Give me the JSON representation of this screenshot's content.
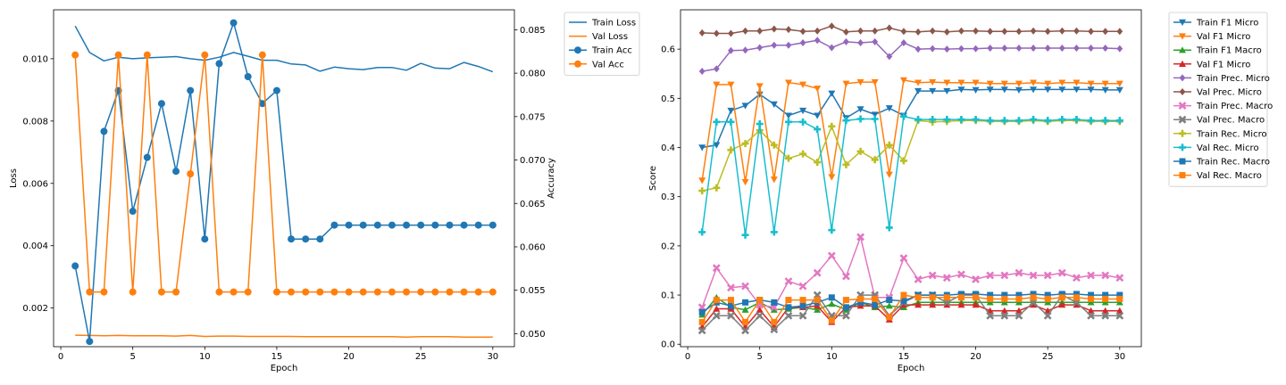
{
  "chart_data": [
    {
      "type": "line",
      "xlabel": "Epoch",
      "ylabel": "Loss",
      "y2label": "Accuracy",
      "xlim": [
        -0.5,
        31.5
      ],
      "ylim": [
        0.00076,
        0.01157
      ],
      "y2lim": [
        0.0485,
        0.0873
      ],
      "xticks": [
        0,
        5,
        10,
        15,
        20,
        25,
        30
      ],
      "yticks": [
        0.002,
        0.004,
        0.006,
        0.008,
        0.01
      ],
      "y2ticks": [
        0.05,
        0.055,
        0.06,
        0.065,
        0.07,
        0.075,
        0.08,
        0.085
      ],
      "legend_position": "outside-upper-right",
      "x": [
        1,
        2,
        3,
        4,
        5,
        6,
        7,
        8,
        9,
        10,
        11,
        12,
        13,
        14,
        15,
        16,
        17,
        18,
        19,
        20,
        21,
        22,
        23,
        24,
        25,
        26,
        27,
        28,
        29,
        30
      ],
      "series": [
        {
          "name": "Train Loss",
          "axis": "left",
          "color": "#1f77b4",
          "marker": "none",
          "values": [
            0.01105,
            0.0102,
            0.00993,
            0.01005,
            0.01,
            0.01003,
            0.01005,
            0.01007,
            0.01,
            0.00995,
            0.01005,
            0.0102,
            0.01008,
            0.00995,
            0.00995,
            0.00983,
            0.0098,
            0.0096,
            0.00973,
            0.00968,
            0.00965,
            0.00972,
            0.00972,
            0.00963,
            0.00985,
            0.0097,
            0.00968,
            0.00988,
            0.00975,
            0.00958
          ]
        },
        {
          "name": "Val Loss",
          "axis": "left",
          "color": "#ff7f0e",
          "marker": "none",
          "values": [
            0.00113,
            0.00112,
            0.00111,
            0.00112,
            0.00111,
            0.00111,
            0.00111,
            0.0011,
            0.00112,
            0.00109,
            0.0011,
            0.0011,
            0.00109,
            0.00109,
            0.00109,
            0.00109,
            0.00108,
            0.00108,
            0.00108,
            0.00108,
            0.00108,
            0.00108,
            0.00108,
            0.00107,
            0.00108,
            0.00108,
            0.00108,
            0.00107,
            0.00107,
            0.00107
          ]
        },
        {
          "name": "Train Acc",
          "axis": "right",
          "color": "#1f77b4",
          "marker": "circle",
          "values": [
            0.0578,
            0.0491,
            0.0733,
            0.078,
            0.0641,
            0.0703,
            0.0765,
            0.0687,
            0.078,
            0.0609,
            0.0811,
            0.0858,
            0.0796,
            0.0765,
            0.078,
            0.0609,
            0.0609,
            0.0609,
            0.0625,
            0.0625,
            0.0625,
            0.0625,
            0.0625,
            0.0625,
            0.0625,
            0.0625,
            0.0625,
            0.0625,
            0.0625,
            0.0625
          ]
        },
        {
          "name": "Val Acc",
          "axis": "right",
          "color": "#ff7f0e",
          "marker": "circle",
          "values": [
            0.0821,
            0.0548,
            0.0548,
            0.0821,
            0.0548,
            0.0821,
            0.0548,
            0.0548,
            0.0684,
            0.0821,
            0.0548,
            0.0548,
            0.0548,
            0.0821,
            0.0548,
            0.0548,
            0.0548,
            0.0548,
            0.0548,
            0.0548,
            0.0548,
            0.0548,
            0.0548,
            0.0548,
            0.0548,
            0.0548,
            0.0548,
            0.0548,
            0.0548,
            0.0548
          ]
        }
      ]
    },
    {
      "type": "line",
      "xlabel": "Epoch",
      "ylabel": "Score",
      "xlim": [
        -0.5,
        31.5
      ],
      "ylim": [
        -0.005,
        0.68
      ],
      "xticks": [
        0,
        5,
        10,
        15,
        20,
        25,
        30
      ],
      "yticks": [
        0.0,
        0.1,
        0.2,
        0.3,
        0.4,
        0.5,
        0.6
      ],
      "legend_position": "outside-upper-right",
      "x": [
        1,
        2,
        3,
        4,
        5,
        6,
        7,
        8,
        9,
        10,
        11,
        12,
        13,
        14,
        15,
        16,
        17,
        18,
        19,
        20,
        21,
        22,
        23,
        24,
        25,
        26,
        27,
        28,
        29,
        30
      ],
      "series": [
        {
          "name": "Train F1 Micro",
          "color": "#1f77b4",
          "marker": "tri-down",
          "values": [
            0.4,
            0.405,
            0.475,
            0.485,
            0.508,
            0.488,
            0.465,
            0.475,
            0.465,
            0.51,
            0.46,
            0.478,
            0.467,
            0.48,
            0.465,
            0.515,
            0.515,
            0.515,
            0.518,
            0.517,
            0.518,
            0.518,
            0.517,
            0.518,
            0.518,
            0.518,
            0.518,
            0.518,
            0.517,
            0.517
          ]
        },
        {
          "name": "Val F1 Micro",
          "color": "#ff7f0e",
          "marker": "tri-down",
          "values": [
            0.333,
            0.528,
            0.528,
            0.33,
            0.525,
            0.335,
            0.532,
            0.528,
            0.52,
            0.34,
            0.53,
            0.533,
            0.533,
            0.345,
            0.537,
            0.532,
            0.533,
            0.532,
            0.532,
            0.532,
            0.53,
            0.53,
            0.53,
            0.532,
            0.53,
            0.532,
            0.532,
            0.53,
            0.53,
            0.53
          ]
        },
        {
          "name": "Train F1 Macro",
          "color": "#2ca02c",
          "marker": "tri-up",
          "values": [
            0.06,
            0.095,
            0.075,
            0.07,
            0.085,
            0.07,
            0.072,
            0.075,
            0.07,
            0.082,
            0.07,
            0.085,
            0.075,
            0.078,
            0.075,
            0.085,
            0.085,
            0.085,
            0.085,
            0.085,
            0.085,
            0.085,
            0.085,
            0.085,
            0.085,
            0.085,
            0.085,
            0.085,
            0.085,
            0.085
          ]
        },
        {
          "name": "Val F1 Micro",
          "color": "#d62728",
          "marker": "tri-up",
          "values": [
            0.035,
            0.072,
            0.072,
            0.035,
            0.07,
            0.035,
            0.075,
            0.075,
            0.078,
            0.045,
            0.075,
            0.078,
            0.078,
            0.05,
            0.08,
            0.08,
            0.08,
            0.08,
            0.08,
            0.08,
            0.068,
            0.068,
            0.068,
            0.08,
            0.068,
            0.08,
            0.08,
            0.068,
            0.068,
            0.068
          ]
        },
        {
          "name": "Train Prec. Micro",
          "color": "#9467bd",
          "marker": "diamond",
          "values": [
            0.555,
            0.56,
            0.597,
            0.598,
            0.603,
            0.608,
            0.608,
            0.613,
            0.618,
            0.603,
            0.615,
            0.613,
            0.615,
            0.585,
            0.613,
            0.6,
            0.601,
            0.6,
            0.601,
            0.601,
            0.602,
            0.602,
            0.602,
            0.602,
            0.602,
            0.602,
            0.602,
            0.602,
            0.602,
            0.601
          ]
        },
        {
          "name": "Val Prec. Micro",
          "color": "#8c564b",
          "marker": "diamond",
          "values": [
            0.633,
            0.632,
            0.632,
            0.637,
            0.637,
            0.641,
            0.64,
            0.636,
            0.637,
            0.647,
            0.635,
            0.637,
            0.637,
            0.643,
            0.636,
            0.635,
            0.637,
            0.635,
            0.637,
            0.637,
            0.636,
            0.636,
            0.636,
            0.637,
            0.636,
            0.637,
            0.637,
            0.636,
            0.636,
            0.636
          ]
        },
        {
          "name": "Train Prec. Macro",
          "color": "#e377c2",
          "marker": "x",
          "values": [
            0.075,
            0.155,
            0.115,
            0.118,
            0.08,
            0.075,
            0.128,
            0.118,
            0.145,
            0.18,
            0.138,
            0.218,
            0.095,
            0.095,
            0.175,
            0.132,
            0.14,
            0.135,
            0.142,
            0.132,
            0.14,
            0.14,
            0.145,
            0.14,
            0.14,
            0.145,
            0.135,
            0.14,
            0.14,
            0.135
          ]
        },
        {
          "name": "Val Prec. Macro",
          "color": "#7f7f7f",
          "marker": "x",
          "values": [
            0.028,
            0.058,
            0.058,
            0.028,
            0.058,
            0.03,
            0.058,
            0.058,
            0.1,
            0.058,
            0.058,
            0.1,
            0.1,
            0.058,
            0.085,
            0.1,
            0.1,
            0.085,
            0.1,
            0.1,
            0.058,
            0.058,
            0.058,
            0.085,
            0.058,
            0.1,
            0.085,
            0.058,
            0.058,
            0.058
          ]
        },
        {
          "name": "Train Rec. Micro",
          "color": "#bcbd22",
          "marker": "plus",
          "values": [
            0.312,
            0.318,
            0.395,
            0.408,
            0.435,
            0.405,
            0.378,
            0.387,
            0.37,
            0.443,
            0.365,
            0.392,
            0.375,
            0.405,
            0.373,
            0.455,
            0.452,
            0.453,
            0.455,
            0.455,
            0.453,
            0.453,
            0.453,
            0.455,
            0.453,
            0.455,
            0.455,
            0.453,
            0.453,
            0.453
          ]
        },
        {
          "name": "Val Rec. Micro",
          "color": "#17becf",
          "marker": "plus",
          "values": [
            0.228,
            0.452,
            0.452,
            0.222,
            0.448,
            0.228,
            0.452,
            0.452,
            0.437,
            0.232,
            0.455,
            0.458,
            0.458,
            0.237,
            0.463,
            0.457,
            0.457,
            0.457,
            0.457,
            0.457,
            0.455,
            0.455,
            0.455,
            0.457,
            0.455,
            0.457,
            0.457,
            0.455,
            0.455,
            0.455
          ]
        },
        {
          "name": "Train Rec. Macro",
          "color": "#1f77b4",
          "marker": "square",
          "values": [
            0.065,
            0.085,
            0.078,
            0.085,
            0.09,
            0.085,
            0.075,
            0.078,
            0.085,
            0.095,
            0.075,
            0.085,
            0.08,
            0.09,
            0.088,
            0.1,
            0.1,
            0.1,
            0.102,
            0.102,
            0.1,
            0.1,
            0.1,
            0.102,
            0.1,
            0.102,
            0.102,
            0.1,
            0.1,
            0.1
          ]
        },
        {
          "name": "Val Rec. Macro",
          "color": "#ff7f0e",
          "marker": "square",
          "values": [
            0.045,
            0.09,
            0.09,
            0.045,
            0.09,
            0.045,
            0.09,
            0.09,
            0.09,
            0.048,
            0.09,
            0.092,
            0.092,
            0.055,
            0.1,
            0.095,
            0.095,
            0.095,
            0.095,
            0.095,
            0.092,
            0.092,
            0.092,
            0.095,
            0.092,
            0.095,
            0.095,
            0.092,
            0.092,
            0.092
          ]
        }
      ]
    }
  ]
}
